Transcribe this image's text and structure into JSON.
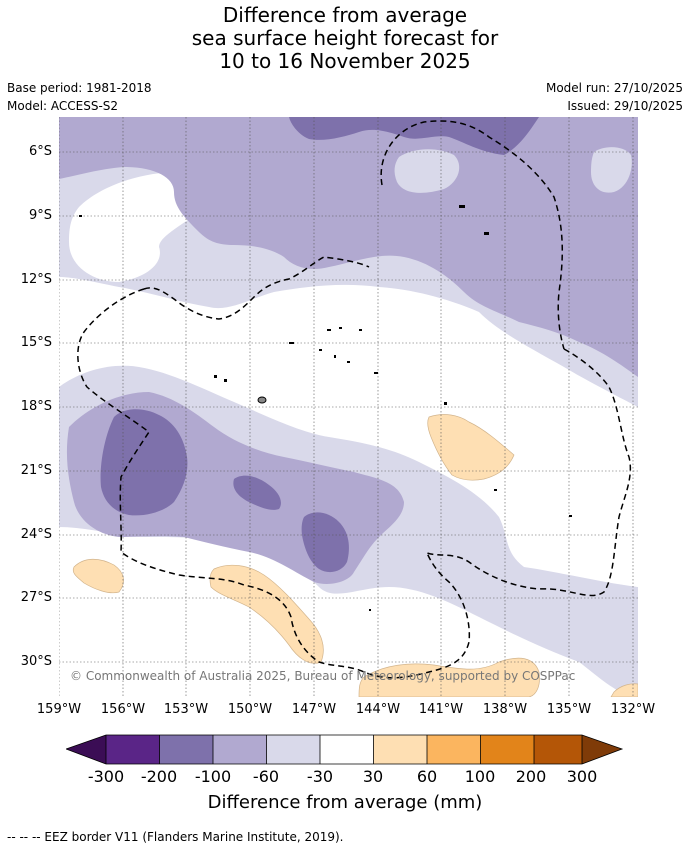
{
  "title": {
    "line1": "Difference from average",
    "line2": "sea surface height forecast for",
    "line3": "10 to 16 November 2025"
  },
  "meta": {
    "base_period": "Base period: 1981-2018",
    "model": "Model: ACCESS-S2",
    "model_run": "Model run: 27/10/2025",
    "issued": "Issued: 29/10/2025"
  },
  "latitude_labels": [
    "6°S",
    "9°S",
    "12°S",
    "15°S",
    "18°S",
    "21°S",
    "24°S",
    "27°S",
    "30°S"
  ],
  "longitude_labels": [
    "159°W",
    "156°W",
    "153°W",
    "150°W",
    "147°W",
    "144°W",
    "141°W",
    "138°W",
    "135°W",
    "132°W"
  ],
  "copyright": "© Commonwealth of Australia 2025, Bureau of Meteorology, supported by COSPPac",
  "colorbar": {
    "title": "Difference from average (mm)",
    "ticks": [
      "-300",
      "-200",
      "-100",
      "-60",
      "-30",
      "30",
      "60",
      "100",
      "200",
      "300"
    ],
    "colors": [
      "#3b0d55",
      "#5a2587",
      "#7e71ab",
      "#b1a9d0",
      "#d9d9ea",
      "#ffffff",
      "#fedfb3",
      "#fbb55f",
      "#e2841a",
      "#b45607",
      "#7f3b08"
    ]
  },
  "footnote": "--  --  -- EEZ border V11 (Flanders Marine Institute, 2019)."
}
